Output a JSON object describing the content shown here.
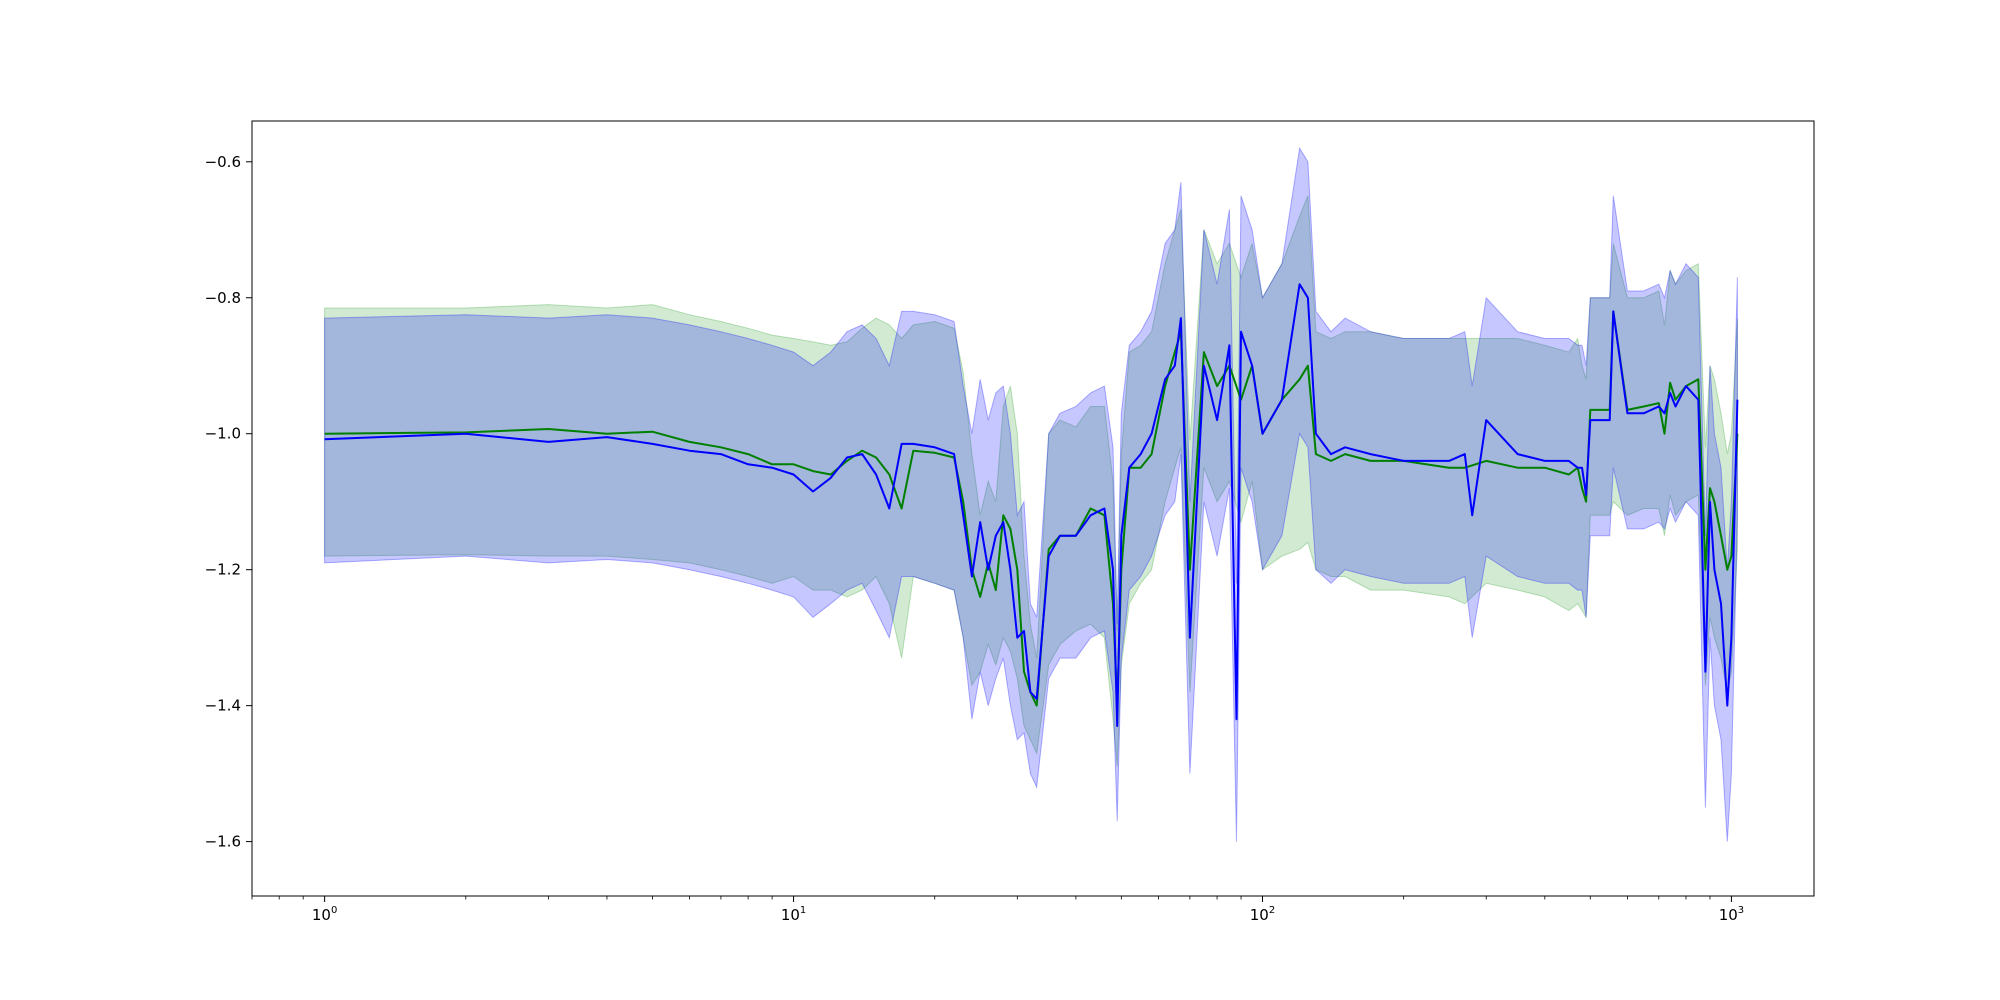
{
  "chart_data": {
    "type": "line",
    "title": "",
    "xlabel": "",
    "ylabel": "",
    "xscale": "log",
    "xlim": [
      0.7,
      1500
    ],
    "ylim": [
      -1.68,
      -0.54
    ],
    "x_ticks": [
      {
        "value": 1,
        "base": "10",
        "exp": "0"
      },
      {
        "value": 10,
        "base": "10",
        "exp": "1"
      },
      {
        "value": 100,
        "base": "10",
        "exp": "2"
      },
      {
        "value": 1000,
        "base": "10",
        "exp": "3"
      }
    ],
    "y_ticks": [
      {
        "value": -0.6,
        "label": "−0.6"
      },
      {
        "value": -0.8,
        "label": "−0.8"
      },
      {
        "value": -1.0,
        "label": "−1.0"
      },
      {
        "value": -1.2,
        "label": "−1.2"
      },
      {
        "value": -1.4,
        "label": "−1.4"
      },
      {
        "value": -1.6,
        "label": "−1.6"
      }
    ],
    "grid": false,
    "legend": "none",
    "series": [
      {
        "color": "#008000",
        "band_color": "#2ca02c",
        "x": [
          1,
          2,
          3,
          4,
          5,
          6,
          7,
          8,
          9,
          10,
          11,
          12,
          13,
          14,
          15,
          16,
          17,
          18,
          20,
          22,
          23,
          24,
          25,
          26,
          27,
          28,
          29,
          30,
          31,
          32,
          33,
          35,
          37,
          40,
          43,
          46,
          48,
          49,
          50,
          52,
          55,
          58,
          62,
          65,
          67,
          70,
          75,
          80,
          85,
          90,
          95,
          100,
          110,
          120,
          125,
          130,
          140,
          150,
          170,
          200,
          250,
          270,
          300,
          350,
          400,
          450,
          470,
          480,
          490,
          500,
          550,
          560,
          600,
          650,
          700,
          720,
          740,
          760,
          800,
          850,
          880,
          900,
          920,
          950,
          980,
          1000,
          1030
        ],
        "y": [
          -1.0,
          -0.998,
          -0.993,
          -1.0,
          -0.997,
          -1.012,
          -1.02,
          -1.03,
          -1.045,
          -1.045,
          -1.055,
          -1.06,
          -1.04,
          -1.025,
          -1.035,
          -1.06,
          -1.11,
          -1.025,
          -1.028,
          -1.035,
          -1.1,
          -1.2,
          -1.24,
          -1.19,
          -1.23,
          -1.12,
          -1.14,
          -1.2,
          -1.35,
          -1.38,
          -1.4,
          -1.17,
          -1.15,
          -1.15,
          -1.11,
          -1.12,
          -1.25,
          -1.4,
          -1.2,
          -1.05,
          -1.05,
          -1.03,
          -0.93,
          -0.88,
          -0.85,
          -1.2,
          -0.88,
          -0.93,
          -0.9,
          -0.95,
          -0.9,
          -1.0,
          -0.95,
          -0.92,
          -0.9,
          -1.03,
          -1.04,
          -1.03,
          -1.04,
          -1.04,
          -1.05,
          -1.05,
          -1.04,
          -1.05,
          -1.05,
          -1.06,
          -1.05,
          -1.08,
          -1.1,
          -0.965,
          -0.965,
          -0.82,
          -0.965,
          -0.96,
          -0.955,
          -1.0,
          -0.925,
          -0.95,
          -0.93,
          -0.92,
          -1.2,
          -1.08,
          -1.1,
          -1.15,
          -1.2,
          -1.18,
          -1.0
        ],
        "band_low": [
          -1.18,
          -1.178,
          -1.18,
          -1.18,
          -1.185,
          -1.19,
          -1.2,
          -1.21,
          -1.22,
          -1.21,
          -1.23,
          -1.23,
          -1.24,
          -1.23,
          -1.21,
          -1.25,
          -1.33,
          -1.21,
          -1.22,
          -1.23,
          -1.3,
          -1.37,
          -1.35,
          -1.31,
          -1.34,
          -1.3,
          -1.32,
          -1.36,
          -1.43,
          -1.45,
          -1.47,
          -1.34,
          -1.31,
          -1.29,
          -1.28,
          -1.3,
          -1.42,
          -1.49,
          -1.34,
          -1.25,
          -1.22,
          -1.2,
          -1.1,
          -1.05,
          -1.02,
          -1.38,
          -1.05,
          -1.1,
          -1.07,
          -1.13,
          -1.07,
          -1.2,
          -1.18,
          -1.17,
          -1.16,
          -1.2,
          -1.21,
          -1.21,
          -1.23,
          -1.23,
          -1.24,
          -1.25,
          -1.22,
          -1.23,
          -1.24,
          -1.26,
          -1.25,
          -1.26,
          -1.27,
          -1.12,
          -1.12,
          -1.1,
          -1.12,
          -1.11,
          -1.11,
          -1.15,
          -1.09,
          -1.12,
          -1.1,
          -1.09,
          -1.37,
          -1.27,
          -1.3,
          -1.33,
          -1.38,
          -1.35,
          -1.17
        ],
        "band_high": [
          -0.815,
          -0.815,
          -0.81,
          -0.815,
          -0.81,
          -0.825,
          -0.835,
          -0.845,
          -0.855,
          -0.86,
          -0.865,
          -0.87,
          -0.865,
          -0.845,
          -0.83,
          -0.84,
          -0.86,
          -0.84,
          -0.835,
          -0.845,
          -0.91,
          -1.03,
          -1.12,
          -1.07,
          -1.1,
          -0.96,
          -0.93,
          -1.0,
          -1.18,
          -1.28,
          -1.33,
          -1.0,
          -0.98,
          -0.99,
          -0.96,
          -0.96,
          -1.07,
          -1.29,
          -1.03,
          -0.88,
          -0.87,
          -0.85,
          -0.75,
          -0.7,
          -0.67,
          -1.01,
          -0.7,
          -0.75,
          -0.72,
          -0.77,
          -0.72,
          -0.8,
          -0.75,
          -0.68,
          -0.65,
          -0.85,
          -0.86,
          -0.85,
          -0.85,
          -0.86,
          -0.86,
          -0.86,
          -0.86,
          -0.86,
          -0.87,
          -0.88,
          -0.86,
          -0.9,
          -0.92,
          -0.8,
          -0.8,
          -0.72,
          -0.8,
          -0.8,
          -0.79,
          -0.84,
          -0.76,
          -0.78,
          -0.76,
          -0.75,
          -1.02,
          -0.9,
          -0.92,
          -0.97,
          -1.03,
          -1.0,
          -0.83
        ]
      },
      {
        "color": "#0000ff",
        "band_color": "#0000ff",
        "x": [
          1,
          2,
          3,
          4,
          5,
          6,
          7,
          8,
          9,
          10,
          11,
          12,
          13,
          14,
          15,
          16,
          17,
          18,
          20,
          22,
          23,
          24,
          25,
          26,
          27,
          28,
          29,
          30,
          31,
          32,
          33,
          35,
          37,
          40,
          43,
          46,
          48,
          49,
          50,
          52,
          55,
          58,
          62,
          65,
          67,
          70,
          75,
          80,
          85,
          88,
          90,
          95,
          100,
          110,
          120,
          125,
          130,
          140,
          150,
          170,
          200,
          250,
          270,
          280,
          300,
          350,
          400,
          450,
          470,
          480,
          490,
          500,
          550,
          560,
          600,
          650,
          700,
          720,
          740,
          760,
          800,
          850,
          880,
          900,
          920,
          950,
          980,
          1000,
          1030
        ],
        "y": [
          -1.008,
          -1.0,
          -1.012,
          -1.005,
          -1.015,
          -1.025,
          -1.03,
          -1.045,
          -1.05,
          -1.06,
          -1.085,
          -1.065,
          -1.035,
          -1.03,
          -1.06,
          -1.11,
          -1.015,
          -1.015,
          -1.02,
          -1.03,
          -1.12,
          -1.21,
          -1.13,
          -1.2,
          -1.15,
          -1.13,
          -1.2,
          -1.3,
          -1.29,
          -1.38,
          -1.39,
          -1.18,
          -1.15,
          -1.15,
          -1.12,
          -1.11,
          -1.2,
          -1.43,
          -1.15,
          -1.05,
          -1.03,
          -1.0,
          -0.92,
          -0.9,
          -0.83,
          -1.3,
          -0.9,
          -0.98,
          -0.87,
          -1.42,
          -0.85,
          -0.9,
          -1.0,
          -0.95,
          -0.78,
          -0.8,
          -1.0,
          -1.03,
          -1.02,
          -1.03,
          -1.04,
          -1.04,
          -1.03,
          -1.12,
          -0.98,
          -1.03,
          -1.04,
          -1.04,
          -1.05,
          -1.05,
          -1.09,
          -0.98,
          -0.98,
          -0.82,
          -0.97,
          -0.97,
          -0.96,
          -0.97,
          -0.94,
          -0.96,
          -0.93,
          -0.95,
          -1.35,
          -1.1,
          -1.2,
          -1.25,
          -1.4,
          -1.3,
          -0.95
        ],
        "band_low": [
          -1.19,
          -1.18,
          -1.19,
          -1.185,
          -1.19,
          -1.2,
          -1.21,
          -1.22,
          -1.23,
          -1.24,
          -1.27,
          -1.25,
          -1.23,
          -1.22,
          -1.26,
          -1.3,
          -1.21,
          -1.21,
          -1.22,
          -1.23,
          -1.3,
          -1.42,
          -1.35,
          -1.4,
          -1.36,
          -1.33,
          -1.4,
          -1.45,
          -1.44,
          -1.5,
          -1.52,
          -1.36,
          -1.33,
          -1.33,
          -1.3,
          -1.29,
          -1.38,
          -1.57,
          -1.33,
          -1.23,
          -1.21,
          -1.18,
          -1.12,
          -1.1,
          -1.03,
          -1.5,
          -1.1,
          -1.18,
          -1.08,
          -1.6,
          -1.05,
          -1.1,
          -1.2,
          -1.15,
          -1.0,
          -1.02,
          -1.2,
          -1.22,
          -1.2,
          -1.21,
          -1.22,
          -1.22,
          -1.21,
          -1.3,
          -1.18,
          -1.21,
          -1.22,
          -1.22,
          -1.23,
          -1.23,
          -1.27,
          -1.15,
          -1.15,
          -1.05,
          -1.14,
          -1.14,
          -1.13,
          -1.14,
          -1.11,
          -1.13,
          -1.1,
          -1.12,
          -1.55,
          -1.3,
          -1.4,
          -1.45,
          -1.6,
          -1.5,
          -1.12
        ],
        "band_high": [
          -0.83,
          -0.825,
          -0.83,
          -0.825,
          -0.83,
          -0.84,
          -0.85,
          -0.86,
          -0.87,
          -0.88,
          -0.9,
          -0.88,
          -0.85,
          -0.84,
          -0.86,
          -0.9,
          -0.82,
          -0.82,
          -0.825,
          -0.835,
          -0.93,
          -1.0,
          -0.92,
          -0.98,
          -0.94,
          -0.93,
          -1.0,
          -1.12,
          -1.1,
          -1.25,
          -1.27,
          -1.0,
          -0.97,
          -0.96,
          -0.94,
          -0.93,
          -1.02,
          -1.28,
          -0.97,
          -0.87,
          -0.85,
          -0.82,
          -0.72,
          -0.7,
          -0.63,
          -1.1,
          -0.7,
          -0.78,
          -0.67,
          -1.22,
          -0.65,
          -0.7,
          -0.8,
          -0.75,
          -0.58,
          -0.6,
          -0.82,
          -0.85,
          -0.83,
          -0.85,
          -0.86,
          -0.86,
          -0.85,
          -0.93,
          -0.8,
          -0.85,
          -0.86,
          -0.86,
          -0.87,
          -0.87,
          -0.9,
          -0.8,
          -0.8,
          -0.65,
          -0.79,
          -0.79,
          -0.78,
          -0.8,
          -0.76,
          -0.78,
          -0.75,
          -0.77,
          -1.15,
          -0.9,
          -1.0,
          -1.05,
          -1.2,
          -1.1,
          -0.77
        ]
      }
    ]
  }
}
